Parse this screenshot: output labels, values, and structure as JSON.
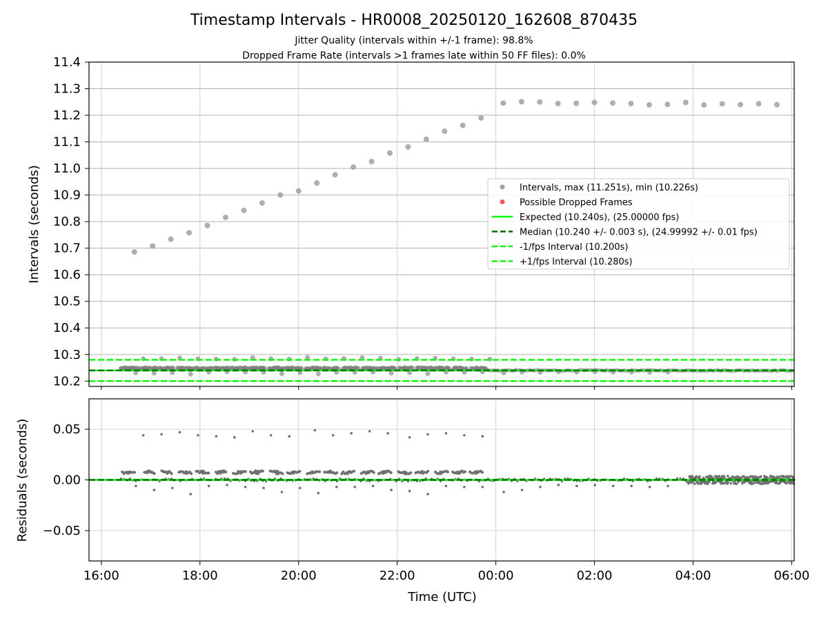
{
  "chart_data": {
    "title": "Timestamp Intervals - HR0008_20250120_162608_870435",
    "subtitles": [
      "Jitter Quality (intervals within +/-1 frame): 98.8%",
      "Dropped Frame Rate (intervals >1 frames late within 50 FF files): 0.0%"
    ],
    "xlabel": "Time (UTC)",
    "x_tick_labels": [
      "16:00",
      "18:00",
      "20:00",
      "22:00",
      "00:00",
      "02:00",
      "04:00",
      "06:00"
    ],
    "x_ticks_hours": [
      16,
      18,
      20,
      22,
      24,
      26,
      28,
      30
    ],
    "xlim_hours": [
      15.75,
      30.05
    ],
    "top": {
      "type": "scatter",
      "ylabel": "Intervals (seconds)",
      "ylim": [
        10.18,
        11.4
      ],
      "y_ticks": [
        10.2,
        10.3,
        10.4,
        10.5,
        10.6,
        10.7,
        10.8,
        10.9,
        11.0,
        11.1,
        11.2,
        11.3,
        11.4
      ],
      "y_tick_labels": [
        "10.2",
        "10.3",
        "10.4",
        "10.5",
        "10.6",
        "10.7",
        "10.8",
        "10.9",
        "11.0",
        "11.1",
        "11.2",
        "11.3",
        "11.4"
      ],
      "grid": true,
      "legend_position": "center-right",
      "series_large_intervals": {
        "color": "#a0a0a0",
        "x_hours": [
          16.67,
          17.04,
          17.41,
          17.78,
          18.15,
          18.52,
          18.89,
          19.26,
          19.63,
          20.0,
          20.37,
          20.74,
          21.11,
          21.48,
          21.85,
          22.22,
          22.59,
          22.96,
          23.33,
          23.7,
          24.15,
          24.52,
          24.89,
          25.26,
          25.63,
          26.0,
          26.37,
          26.74,
          27.11,
          27.48,
          27.85,
          28.22,
          28.59,
          28.96,
          29.33,
          29.7
        ],
        "y": [
          10.686,
          10.708,
          10.734,
          10.758,
          10.785,
          10.816,
          10.842,
          10.87,
          10.9,
          10.915,
          10.945,
          10.976,
          11.005,
          11.026,
          11.058,
          11.081,
          11.11,
          11.14,
          11.162,
          11.19,
          11.246,
          11.251,
          11.25,
          11.244,
          11.245,
          11.248,
          11.246,
          11.244,
          11.239,
          11.241,
          11.248,
          11.239,
          11.243,
          11.24,
          11.243,
          11.24
        ]
      },
      "series_late_intervals": {
        "color": "#a0a0a0",
        "x_hours": [
          16.85,
          17.22,
          17.59,
          17.96,
          18.33,
          18.7,
          19.07,
          19.44,
          19.81,
          20.18,
          20.55,
          20.92,
          21.29,
          21.66,
          22.03,
          22.4,
          22.77,
          23.14,
          23.51,
          23.88
        ],
        "y": [
          10.284,
          10.284,
          10.287,
          10.284,
          10.283,
          10.282,
          10.288,
          10.284,
          10.283,
          10.289,
          10.284,
          10.285,
          10.288,
          10.286,
          10.282,
          10.285,
          10.286,
          10.284,
          10.283,
          10.283
        ]
      },
      "series_early_intervals": {
        "color": "#a0a0a0",
        "x_hours": [
          16.7,
          17.07,
          17.44,
          17.81,
          18.18,
          18.55,
          18.92,
          19.29,
          19.66,
          20.03,
          20.4,
          20.77,
          21.14,
          21.51,
          21.88,
          22.25,
          22.62,
          22.99,
          23.36,
          23.73,
          24.16,
          24.53,
          24.9,
          25.27,
          25.64,
          26.01,
          26.38,
          26.75,
          27.12,
          27.49
        ],
        "y": [
          10.231,
          10.23,
          10.232,
          10.226,
          10.234,
          10.235,
          10.234,
          10.233,
          10.228,
          10.232,
          10.227,
          10.233,
          10.233,
          10.234,
          10.23,
          10.232,
          10.228,
          10.234,
          10.233,
          10.235,
          10.231,
          10.234,
          10.233,
          10.235,
          10.234,
          10.235,
          10.234,
          10.234,
          10.233,
          10.234
        ]
      },
      "dense_band": {
        "color": "#808080",
        "y_center": 10.247,
        "segments_hours": [
          [
            16.4,
            16.75
          ],
          [
            16.8,
            17.1
          ],
          [
            17.15,
            17.45
          ],
          [
            17.55,
            17.85
          ],
          [
            17.9,
            18.25
          ],
          [
            18.3,
            18.6
          ],
          [
            18.65,
            19.0
          ],
          [
            19.05,
            19.3
          ],
          [
            19.4,
            19.7
          ],
          [
            19.75,
            20.05
          ],
          [
            20.15,
            20.45
          ],
          [
            20.5,
            20.8
          ],
          [
            20.9,
            21.2
          ],
          [
            21.3,
            21.6
          ],
          [
            21.65,
            21.95
          ],
          [
            22.05,
            22.3
          ],
          [
            22.4,
            22.7
          ],
          [
            22.75,
            23.05
          ],
          [
            23.15,
            23.4
          ],
          [
            23.5,
            23.8
          ]
        ]
      },
      "low_band": {
        "color": "#808080",
        "y_center": 10.24,
        "hours": [
          23.85,
          30.05
        ]
      },
      "reference_lines": [
        {
          "y": 10.24,
          "color": "#00ff00",
          "style": "solid"
        },
        {
          "y": 10.24,
          "color": "#007000",
          "style": "dashed"
        },
        {
          "y": 10.2,
          "color": "#00ff00",
          "style": "dashed"
        },
        {
          "y": 10.28,
          "color": "#00ff00",
          "style": "dashed"
        }
      ],
      "legend": [
        {
          "label": "Intervals, max (11.251s), min (10.226s)",
          "kind": "dot",
          "color": "#a0a0a0"
        },
        {
          "label": "Possible Dropped Frames",
          "kind": "dot",
          "color": "#ff5050"
        },
        {
          "label": "Expected (10.240s), (25.00000 fps)",
          "kind": "solid",
          "color": "#00ff00"
        },
        {
          "label": "Median (10.240 +/- 0.003 s), (24.99992 +/- 0.01 fps)",
          "kind": "dashed",
          "color": "#007000"
        },
        {
          "label": "-1/fps Interval (10.200s)",
          "kind": "dashed",
          "color": "#00ff00"
        },
        {
          "label": "+1/fps Interval (10.280s)",
          "kind": "dashed",
          "color": "#00ff00"
        }
      ]
    },
    "bottom": {
      "type": "scatter",
      "ylabel": "Residuals (seconds)",
      "ylim": [
        -0.08,
        0.08
      ],
      "y_ticks": [
        0.05,
        0.0,
        -0.05
      ],
      "y_tick_labels": [
        "0.05",
        "0.00",
        "−0.05"
      ],
      "grid": true,
      "color": "#707070",
      "series_high": {
        "x_hours": [
          16.85,
          17.22,
          17.59,
          17.96,
          18.33,
          18.7,
          19.07,
          19.44,
          19.81,
          20.33,
          20.7,
          21.07,
          21.44,
          21.81,
          22.25,
          22.62,
          22.99,
          23.36,
          23.73
        ],
        "y": [
          0.044,
          0.045,
          0.047,
          0.044,
          0.043,
          0.042,
          0.048,
          0.044,
          0.043,
          0.049,
          0.044,
          0.046,
          0.048,
          0.046,
          0.042,
          0.045,
          0.046,
          0.044,
          0.043
        ]
      },
      "series_low": {
        "x_hours": [
          16.7,
          17.07,
          17.44,
          17.81,
          18.18,
          18.55,
          18.92,
          19.29,
          19.66,
          20.03,
          20.4,
          20.77,
          21.14,
          21.51,
          21.88,
          22.25,
          22.62,
          22.99,
          23.36,
          23.73,
          24.16,
          24.53,
          24.9,
          25.27,
          25.64,
          26.01,
          26.38,
          26.75,
          27.12,
          27.49
        ],
        "y": [
          -0.006,
          -0.01,
          -0.008,
          -0.014,
          -0.006,
          -0.005,
          -0.007,
          -0.008,
          -0.012,
          -0.008,
          -0.013,
          -0.007,
          -0.007,
          -0.006,
          -0.01,
          -0.011,
          -0.014,
          -0.006,
          -0.007,
          -0.007,
          -0.012,
          -0.01,
          -0.007,
          -0.005,
          -0.006,
          -0.005,
          -0.006,
          -0.006,
          -0.007,
          -0.006
        ]
      },
      "series_band": {
        "x_hours": [
          16.5,
          16.6,
          16.95,
          17.0,
          17.3,
          17.35,
          17.65,
          17.75,
          18.0,
          18.1,
          18.4,
          18.45,
          18.75,
          18.85,
          19.1,
          19.2,
          19.5,
          19.6,
          19.85,
          19.95,
          20.25,
          20.35,
          20.6,
          20.7,
          20.95,
          21.05,
          21.35,
          21.45,
          21.7,
          21.8,
          22.1,
          22.2,
          22.45,
          22.55,
          22.85,
          22.95,
          23.2,
          23.3,
          23.55,
          23.65
        ],
        "y": [
          0.007,
          0.007,
          0.008,
          0.007,
          0.008,
          0.007,
          0.008,
          0.007,
          0.008,
          0.007,
          0.007,
          0.008,
          0.007,
          0.008,
          0.007,
          0.008,
          0.008,
          0.007,
          0.007,
          0.008,
          0.007,
          0.008,
          0.008,
          0.007,
          0.007,
          0.008,
          0.007,
          0.008,
          0.007,
          0.008,
          0.008,
          0.007,
          0.007,
          0.008,
          0.007,
          0.008,
          0.007,
          0.008,
          0.007,
          0.008
        ]
      },
      "noise_region_hours": [
        27.9,
        30.05
      ],
      "noise_amplitude": 0.004,
      "reference_lines": [
        {
          "y": 0.0,
          "color": "#00ff00",
          "style": "solid"
        },
        {
          "y": 0.0,
          "color": "#007000",
          "style": "dashed"
        }
      ]
    }
  }
}
